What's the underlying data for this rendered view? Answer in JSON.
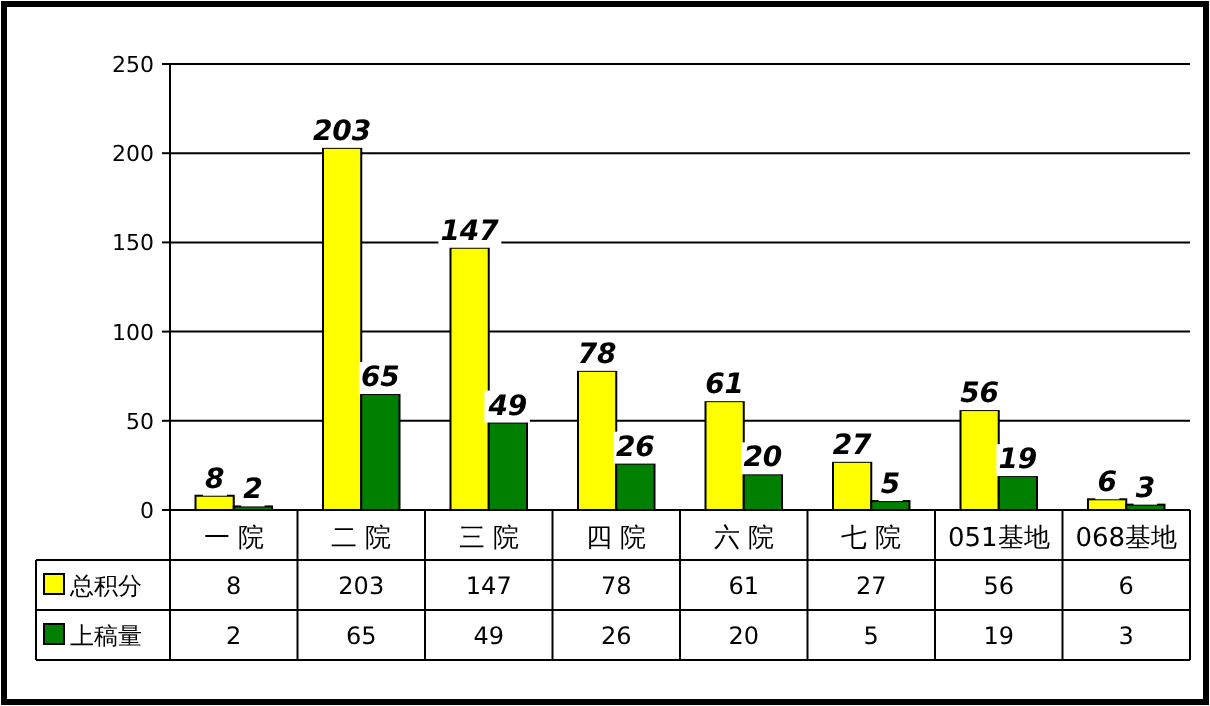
{
  "chart_data": {
    "type": "bar",
    "categories": [
      "一 院",
      "二 院",
      "三 院",
      "四 院",
      "六 院",
      "七 院",
      "051基地",
      "068基地"
    ],
    "series": [
      {
        "name": "总积分",
        "color": "#ffff00",
        "values": [
          8,
          203,
          147,
          78,
          61,
          27,
          56,
          6
        ]
      },
      {
        "name": "上稿量",
        "color": "#008000",
        "values": [
          2,
          65,
          49,
          26,
          20,
          5,
          19,
          3
        ]
      }
    ],
    "ylim": [
      0,
      250
    ],
    "yticks": [
      0,
      50,
      100,
      150,
      200,
      250
    ],
    "grid": "y",
    "legend": "bottom",
    "data_labels": true,
    "annotations": [
      "8",
      "203",
      "147",
      "78",
      "61",
      "27",
      "56",
      "6",
      "2",
      "65",
      "49",
      "26",
      "20",
      "5",
      "19",
      "3"
    ]
  }
}
